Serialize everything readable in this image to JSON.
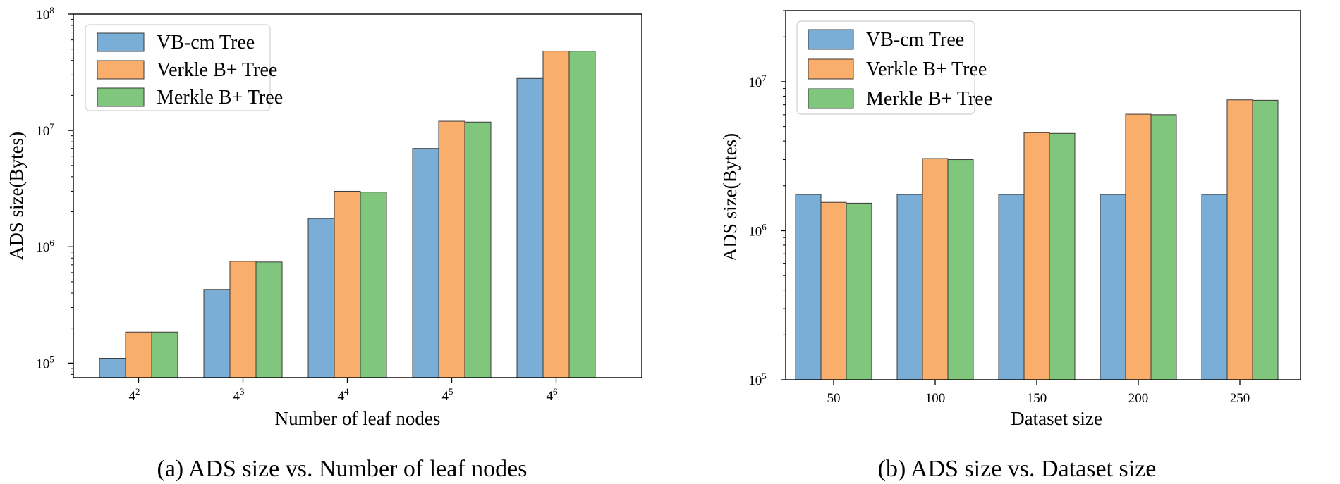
{
  "chart_data": [
    {
      "type": "bar",
      "title": "",
      "xlabel": "Number of leaf nodes",
      "ylabel": "ADS size(Bytes)",
      "yscale": "log",
      "ylim": [
        75000,
        100000000
      ],
      "y_ticks": [
        {
          "value": 100000,
          "base": "10",
          "exp": "5"
        },
        {
          "value": 1000000,
          "base": "10",
          "exp": "6"
        },
        {
          "value": 10000000,
          "base": "10",
          "exp": "7"
        },
        {
          "value": 100000000,
          "base": "10",
          "exp": "8"
        }
      ],
      "categories": [
        {
          "base": "4",
          "exp": "2"
        },
        {
          "base": "4",
          "exp": "3"
        },
        {
          "base": "4",
          "exp": "4"
        },
        {
          "base": "4",
          "exp": "5"
        },
        {
          "base": "4",
          "exp": "6"
        }
      ],
      "series": [
        {
          "name": "VB-cm Tree",
          "color": "#7aaed6",
          "values": [
            110000,
            430000,
            1750000,
            7000000,
            28000000
          ]
        },
        {
          "name": "Verkle B+ Tree",
          "color": "#f9ae6b",
          "values": [
            185000,
            750000,
            3000000,
            12000000,
            48000000
          ]
        },
        {
          "name": "Merkle B+ Tree",
          "color": "#80c67d",
          "values": [
            185000,
            740000,
            2950000,
            11800000,
            48000000
          ]
        }
      ],
      "legend": "top-left",
      "grid": false,
      "caption": "(a) ADS size vs. Number of leaf nodes"
    },
    {
      "type": "bar",
      "title": "",
      "xlabel": "Dataset size",
      "ylabel": "ADS size(Bytes)",
      "yscale": "log",
      "ylim": [
        100000,
        30000000
      ],
      "y_ticks": [
        {
          "value": 100000,
          "base": "10",
          "exp": "5"
        },
        {
          "value": 1000000,
          "base": "10",
          "exp": "6"
        },
        {
          "value": 10000000,
          "base": "10",
          "exp": "7"
        }
      ],
      "categories": [
        "50",
        "100",
        "150",
        "200",
        "250"
      ],
      "series": [
        {
          "name": "VB-cm Tree",
          "color": "#7aaed6",
          "values": [
            1750000,
            1750000,
            1750000,
            1750000,
            1750000
          ]
        },
        {
          "name": "Verkle B+ Tree",
          "color": "#f9ae6b",
          "values": [
            1550000,
            3050000,
            4550000,
            6050000,
            7550000
          ]
        },
        {
          "name": "Merkle B+ Tree",
          "color": "#80c67d",
          "values": [
            1530000,
            3000000,
            4500000,
            6000000,
            7500000
          ]
        }
      ],
      "legend": "top-left",
      "grid": false,
      "caption": "(b) ADS size vs. Dataset size"
    }
  ]
}
